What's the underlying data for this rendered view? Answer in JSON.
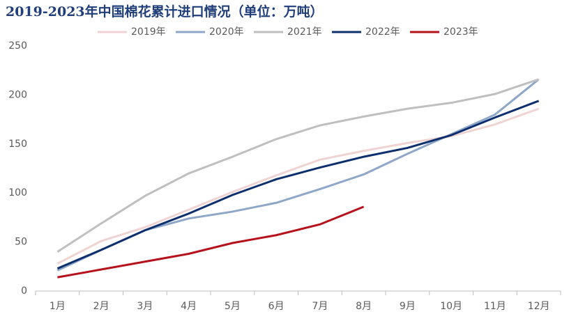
{
  "chart_data": {
    "type": "line",
    "title": "2019-2023年中国棉花累计进口情况（单位：万吨）",
    "categories": [
      "1月",
      "2月",
      "3月",
      "4月",
      "5月",
      "6月",
      "7月",
      "8月",
      "9月",
      "10月",
      "11月",
      "12月"
    ],
    "series": [
      {
        "name": "2019年",
        "color": "#efd3d3",
        "values": [
          28,
          51,
          65,
          83,
          101,
          118,
          134,
          143,
          151,
          158,
          170,
          186
        ]
      },
      {
        "name": "2020年",
        "color": "#8ea7c9",
        "values": [
          21,
          42,
          62,
          74,
          81,
          90,
          104,
          119,
          140,
          160,
          180,
          216
        ]
      },
      {
        "name": "2021年",
        "color": "#bfbfbf",
        "values": [
          40,
          69,
          97,
          120,
          137,
          155,
          169,
          178,
          186,
          192,
          201,
          216
        ]
      },
      {
        "name": "2022年",
        "color": "#0d2f6e",
        "values": [
          23,
          42,
          62,
          79,
          98,
          114,
          126,
          137,
          146,
          159,
          177,
          194
        ]
      },
      {
        "name": "2023年",
        "color": "#b5121b",
        "values": [
          14,
          22,
          30,
          38,
          49,
          57,
          68,
          86,
          null,
          null,
          null,
          null
        ]
      }
    ],
    "ylim": [
      0,
      250
    ],
    "yticks": [
      0,
      50,
      100,
      150,
      200,
      250
    ],
    "legend": "top"
  }
}
